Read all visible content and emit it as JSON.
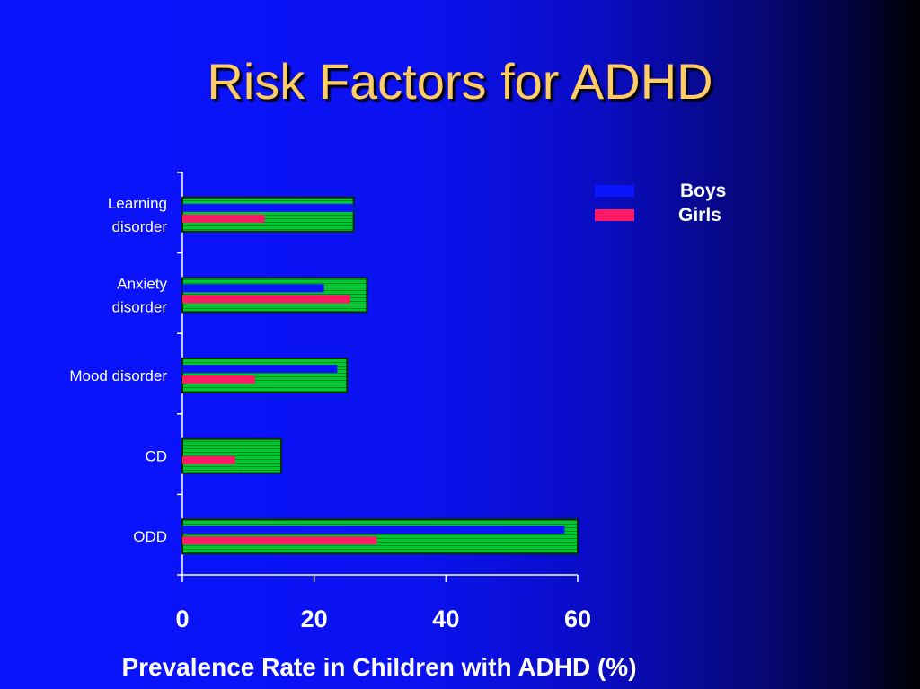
{
  "slide": {
    "title": "Risk Factors for ADHD"
  },
  "chart_data": {
    "type": "bar",
    "orientation": "horizontal",
    "categories": [
      "Learning disorder",
      "Anxiety disorder",
      "Mood disorder",
      "CD",
      "ODD"
    ],
    "category_lines": [
      [
        "Learning",
        "disorder"
      ],
      [
        "Anxiety",
        "disorder"
      ],
      [
        "Mood disorder"
      ],
      [
        "CD"
      ],
      [
        "ODD"
      ]
    ],
    "series": [
      {
        "name": "Boys",
        "color": "#0a14ff",
        "values": [
          26,
          21.5,
          23.5,
          0,
          58
        ]
      },
      {
        "name": "Girls",
        "color": "#ff1a66",
        "values": [
          12.5,
          25.5,
          11,
          8,
          29.5
        ]
      }
    ],
    "total": {
      "color": "#00c832",
      "values": [
        26,
        28,
        25,
        15,
        60
      ]
    },
    "xlabel": "Prevalence Rate in Children with ADHD (%)",
    "ylabel": "",
    "xlim": [
      0,
      60
    ],
    "xticks": [
      0,
      20,
      40,
      60
    ],
    "grid": false,
    "legend_position": "top-right"
  }
}
